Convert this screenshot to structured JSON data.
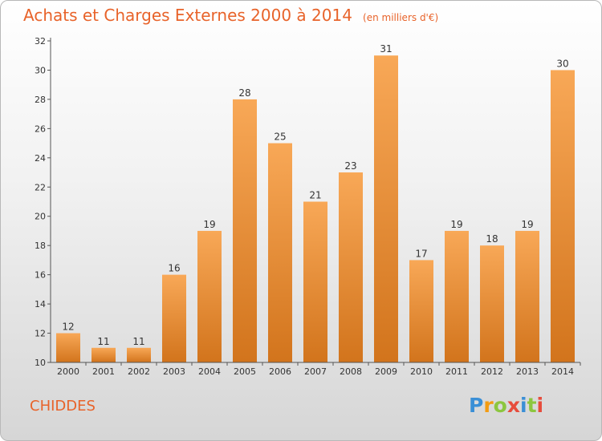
{
  "title": "Achats et Charges Externes 2000 à 2014",
  "subtitle": "(en milliers d'€)",
  "commune": "CHIDDES",
  "logo": {
    "letters": [
      "P",
      "r",
      "o",
      "x",
      "i",
      "t",
      "i"
    ],
    "colors": [
      "#3a8fd6",
      "#f39c12",
      "#8cc63f",
      "#e74c3c",
      "#3a8fd6",
      "#8cc63f",
      "#e74c3c"
    ]
  },
  "colors": {
    "bar_light": "#f8a857",
    "bar_dark": "#d2741c",
    "title": "#e8632a"
  },
  "chart_data": {
    "type": "bar",
    "categories": [
      "2000",
      "2001",
      "2002",
      "2003",
      "2004",
      "2005",
      "2006",
      "2007",
      "2008",
      "2009",
      "2010",
      "2011",
      "2012",
      "2013",
      "2014"
    ],
    "values": [
      12,
      11,
      11,
      16,
      19,
      28,
      25,
      21,
      23,
      31,
      17,
      19,
      18,
      19,
      30
    ],
    "data_labels": [
      "12",
      "11",
      "11",
      "16",
      "19",
      "28",
      "25",
      "21",
      "23",
      "31",
      "17",
      "19",
      "18",
      "19",
      "30"
    ],
    "y_ticks": [
      "10",
      "12",
      "14",
      "16",
      "18",
      "20",
      "22",
      "24",
      "26",
      "28",
      "30",
      "32"
    ],
    "ylim": [
      10,
      32
    ],
    "grid": false
  }
}
